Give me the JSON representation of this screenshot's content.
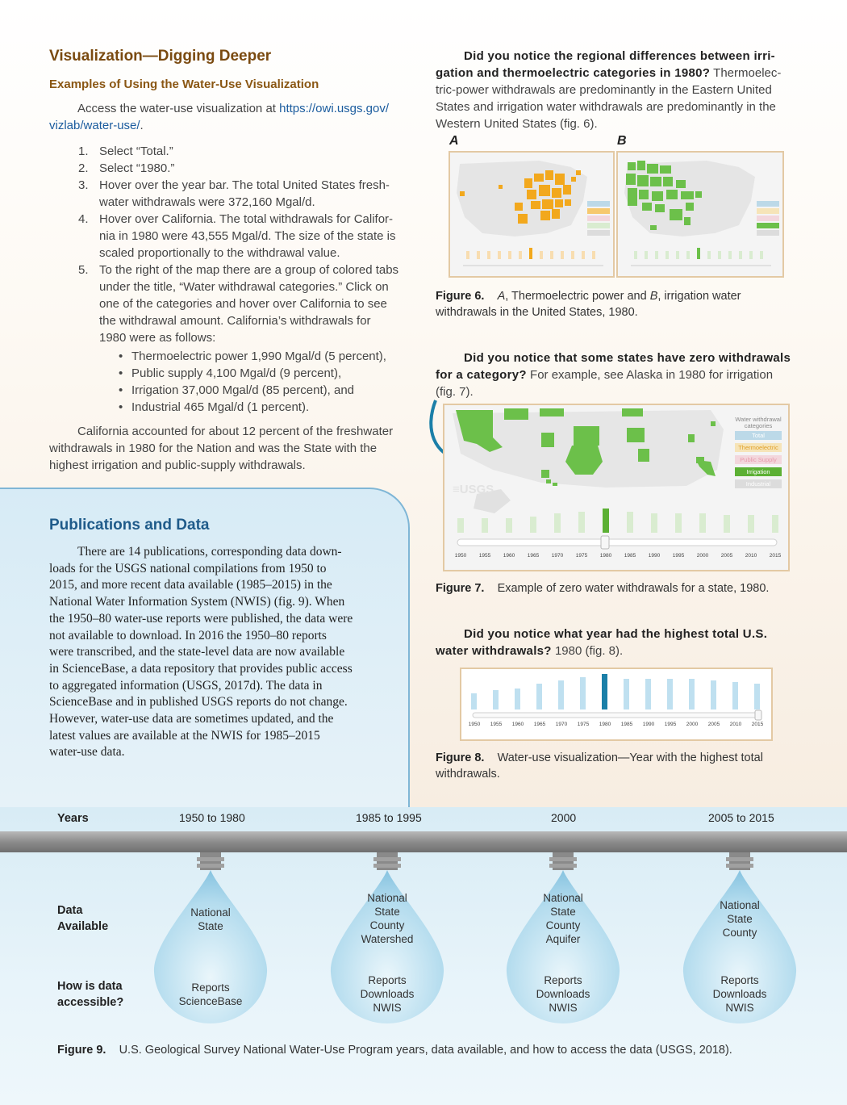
{
  "left": {
    "heading": "Visualization—Digging Deeper",
    "subheading": "Examples of Using the Water-Use Visualization",
    "access_text": "Access the water-use visualization at",
    "access_link_line1": "https://owi.usgs.gov/",
    "access_link_line2": "vizlab/water-use/",
    "access_end": ".",
    "steps": [
      {
        "num": "1.",
        "text": "Select “Total.”"
      },
      {
        "num": "2.",
        "text": "Select “1980.”"
      },
      {
        "num": "3.",
        "lines": [
          "Hover over the year bar. The total United States fresh-",
          "water withdrawals were 372,160 Mgal/d."
        ]
      },
      {
        "num": "4.",
        "lines": [
          "Hover over California. The total withdrawals for Califor-",
          "nia in 1980 were 43,555 Mgal/d. The size of the state is",
          "scaled proportionally to the withdrawal value."
        ]
      },
      {
        "num": "5.",
        "lines": [
          "To the right of the map there are a group of colored tabs",
          "under the title, “Water withdrawal categories.” Click on",
          "one of the categories and hover over California to see",
          "the withdrawal amount. California’s withdrawals for",
          "1980 were as follows:"
        ]
      }
    ],
    "bullets": [
      "Thermoelectric power 1,990 Mgal/d (5 percent),",
      "Public supply 4,100 Mgal/d (9 percent),",
      "Irrigation 37,000 Mgal/d (85 percent), and",
      "Industrial 465 Mgal/d (1 percent)."
    ],
    "closing": [
      "California accounted for about 12 percent of the freshwater",
      "withdrawals in 1980 for the Nation and was the State with the",
      "highest irrigation and public-supply withdrawals."
    ]
  },
  "publications": {
    "heading": "Publications and Data",
    "lines": [
      "There are 14 publications, corresponding data down-",
      "loads for the USGS national compilations from 1950 to",
      "2015, and more recent data available (1985–2015) in the",
      "National Water Information System (NWIS) (fig. 9). When",
      "the 1950–80 water-use reports were published, the data were",
      "not available to download. In 2016 the 1950–80 reports",
      "were transcribed, and the state-level data are now available",
      "in ScienceBase, a data repository that provides public access",
      "to aggregated information (USGS, 2017d). The data in",
      "ScienceBase and in published USGS reports do not change.",
      "However, water-use data are sometimes updated, and the",
      "latest values are available at the NWIS for 1985–2015",
      "water-use data."
    ]
  },
  "q1": {
    "bold_line1": "Did you notice the regional differences between irri-",
    "bold_line2": "gation and thermoelectric categories in 1980?",
    "rest_line2": " Thermoelec-",
    "rest_lines": [
      "tric-power withdrawals are predominantly in the Eastern United",
      "States and irrigation water withdrawals are predominantly in the",
      "Western United States (fig. 6)."
    ]
  },
  "fig6": {
    "label_a": "A",
    "label_b": "B",
    "caption_label": "Figure 6.",
    "caption_a": "A",
    "caption_text1": ", Thermoelectric power and ",
    "caption_b": "B",
    "caption_text2": ", irrigation water",
    "caption_line2": "withdrawals in the United States, 1980.",
    "highlight_a": "#f2a81d",
    "highlight_b": "#6cc04a"
  },
  "q2": {
    "bold_line1": "Did you notice that some states have zero withdrawals",
    "bold_line2": "for a category?",
    "rest_line2": " For example, see Alaska in 1980 for irrigation",
    "rest_line3": "(fig. 7)."
  },
  "fig7": {
    "legend_title": "Water withdrawal categories",
    "tabs": [
      {
        "label": "Total",
        "color": "#bcd9e8",
        "text": "#ffffff"
      },
      {
        "label": "Thermoelectric",
        "color": "#f6e4b8",
        "text": "#e0a02a"
      },
      {
        "label": "Public Supply",
        "color": "#f3d7dd",
        "text": "#e79aaa"
      },
      {
        "label": "Irrigation",
        "color": "#5cb034",
        "text": "#ffffff"
      },
      {
        "label": "Industrial",
        "color": "#dcdcdc",
        "text": "#ffffff"
      }
    ],
    "logo": "≡USGS",
    "years": [
      "1950",
      "1955",
      "1960",
      "1965",
      "1970",
      "1975",
      "1980",
      "1985",
      "1990",
      "1995",
      "2000",
      "2005",
      "2010",
      "2015"
    ],
    "caption_label": "Figure 7.",
    "caption_text": "Example of zero water withdrawals for a state, 1980."
  },
  "q3": {
    "bold_line1": "Did you notice what year had the highest total U.S.",
    "bold_line2": "water withdrawals?",
    "rest_line2": " 1980 (fig. 8)."
  },
  "fig8": {
    "years": [
      "1950",
      "1955",
      "1960",
      "1965",
      "1970",
      "1975",
      "1980",
      "1985",
      "1990",
      "1995",
      "2000",
      "2005",
      "2010",
      "2015"
    ],
    "selected_year": "1980",
    "caption_label": "Figure 8.",
    "caption_text": "Water-use visualization—Year with the highest total",
    "caption_line2": "withdrawals."
  },
  "fig9": {
    "years_label": "Years",
    "data_label_line1": "Data",
    "data_label_line2": "Available",
    "access_label_line1": "How is data",
    "access_label_line2": "accessible?",
    "drops": [
      {
        "period": "1950 to 1980",
        "data": [
          "National",
          "State"
        ],
        "access": [
          "Reports",
          "ScienceBase"
        ]
      },
      {
        "period": "1985 to 1995",
        "data": [
          "National",
          "State",
          "County",
          "Watershed"
        ],
        "access": [
          "Reports",
          "Downloads",
          "NWIS"
        ]
      },
      {
        "period": "2000",
        "data": [
          "National",
          "State",
          "County",
          "Aquifer"
        ],
        "access": [
          "Reports",
          "Downloads",
          "NWIS"
        ]
      },
      {
        "period": "2005 to 2015",
        "data": [
          "National",
          "State",
          "County"
        ],
        "access": [
          "Reports",
          "Downloads",
          "NWIS"
        ]
      }
    ],
    "caption_label": "Figure 9.",
    "caption_text": "U.S. Geological Survey National Water-Use Program years, data available, and how to access the data (USGS, 2018)."
  }
}
